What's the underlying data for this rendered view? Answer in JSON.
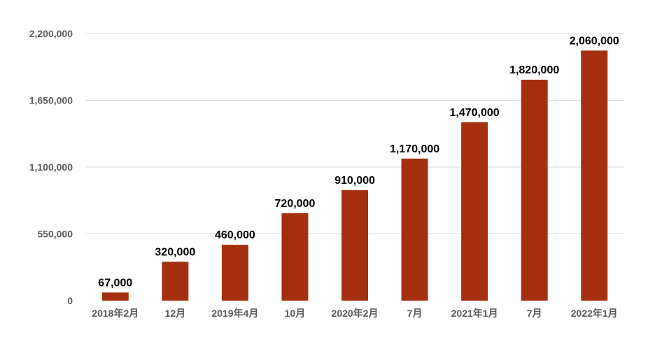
{
  "chart_data": {
    "type": "bar",
    "categories": [
      "2018年2月",
      "12月",
      "2019年4月",
      "10月",
      "2020年2月",
      "7月",
      "2021年1月",
      "7月",
      "2022年1月"
    ],
    "values": [
      67000,
      320000,
      460000,
      720000,
      910000,
      1170000,
      1470000,
      1820000,
      2060000
    ],
    "data_labels": [
      "67,000",
      "320,000",
      "460,000",
      "720,000",
      "910,000",
      "1,170,000",
      "1,470,000",
      "1,820,000",
      "2,060,000"
    ],
    "ylim": [
      0,
      2200000
    ],
    "yticks": [
      0,
      550000,
      1100000,
      1650000,
      2200000
    ],
    "ytick_labels": [
      "0",
      "550,000",
      "1,100,000",
      "1,650,000",
      "2,200,000"
    ],
    "bar_color": "#A5300F",
    "grid": true,
    "legend": false
  }
}
